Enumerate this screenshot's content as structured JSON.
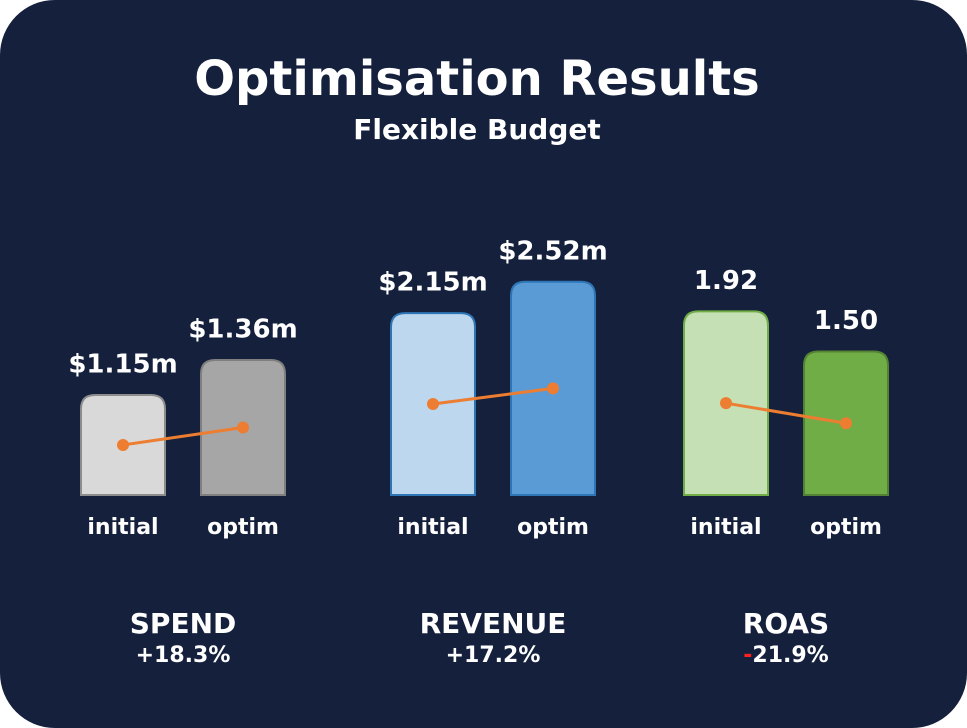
{
  "title": "Optimisation Results",
  "subtitle": "Flexible Budget",
  "chart_data": [
    {
      "type": "bar",
      "name": "SPEND",
      "change": "+18.3%",
      "categories": [
        "initial",
        "optim"
      ],
      "values": [
        1.15,
        1.36
      ],
      "value_labels": [
        "$1.15m",
        "$1.36m"
      ],
      "colors": [
        "#d9d9d9",
        "#a6a6a6"
      ],
      "stroke_colors": [
        "#8c8c8c",
        "#7f7f7f"
      ],
      "line_color": "#ed7d31",
      "ylim": [
        0.55,
        1.87
      ]
    },
    {
      "type": "bar",
      "name": "REVENUE",
      "change": "+17.2%",
      "categories": [
        "initial",
        "optim"
      ],
      "values": [
        2.15,
        2.52
      ],
      "value_labels": [
        "$2.15m",
        "$2.52m"
      ],
      "colors": [
        "#bdd7ee",
        "#5b9bd5"
      ],
      "stroke_colors": [
        "#2e75b6",
        "#2e75b6"
      ],
      "line_color": "#ed7d31",
      "ylim": [
        0,
        2.6
      ]
    },
    {
      "type": "bar",
      "name": "ROAS",
      "change": "-21.9%",
      "categories": [
        "initial",
        "optim"
      ],
      "values": [
        1.92,
        1.5
      ],
      "value_labels": [
        "1.92",
        "1.50"
      ],
      "colors": [
        "#c5e0b4",
        "#70ad47"
      ],
      "stroke_colors": [
        "#70ad47",
        "#548235"
      ],
      "line_color": "#ed7d31",
      "ylim": [
        0,
        2.3
      ]
    }
  ]
}
